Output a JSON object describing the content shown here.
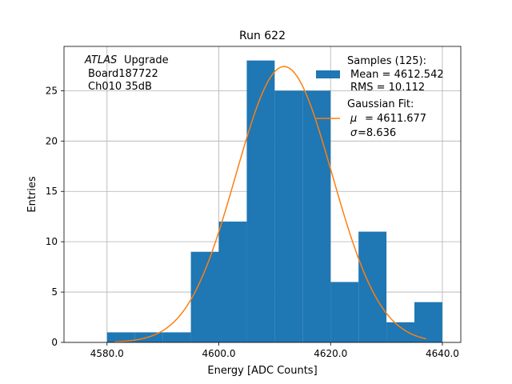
{
  "chart_data": {
    "type": "bar",
    "title": "Run 622",
    "xlabel": "Energy [ADC Counts]",
    "ylabel": "Entries",
    "xlim": [
      4572.3,
      4643.3
    ],
    "ylim": [
      0,
      29.4
    ],
    "grid": true,
    "x_ticks": [
      4580,
      4600,
      4620,
      4640
    ],
    "x_tick_labels": [
      "4580.0",
      "4600.0",
      "4620.0",
      "4640.0"
    ],
    "y_ticks": [
      0,
      5,
      10,
      15,
      20,
      25
    ],
    "y_tick_labels": [
      "0",
      "5",
      "10",
      "15",
      "20",
      "25"
    ],
    "histogram": {
      "bin_edges": [
        4580,
        4585,
        4590,
        4595,
        4600,
        4605,
        4610,
        4615,
        4620,
        4625,
        4630,
        4635,
        4640
      ],
      "counts": [
        1,
        1,
        1,
        9,
        12,
        28,
        25,
        25,
        6,
        11,
        2,
        4
      ],
      "color": "#1f77b4"
    },
    "fit_curve": {
      "amplitude": 27.4,
      "mu": 4611.677,
      "sigma": 8.636,
      "x_range": [
        4581.4,
        4637.1
      ],
      "color": "#ff7f0e"
    },
    "annotation": {
      "lines": [
        "ATLAS",
        "Upgrade",
        "Board187722",
        "Ch010 35dB"
      ]
    },
    "legend": {
      "position": "top-right",
      "samples": [
        "Samples (125):",
        "Mean = 4612.542",
        "RMS = 10.112"
      ],
      "fit": [
        "Gaussian Fit:",
        "= 4611.677",
        "=8.636"
      ],
      "fit_symbols": [
        "μ",
        "σ"
      ]
    }
  }
}
